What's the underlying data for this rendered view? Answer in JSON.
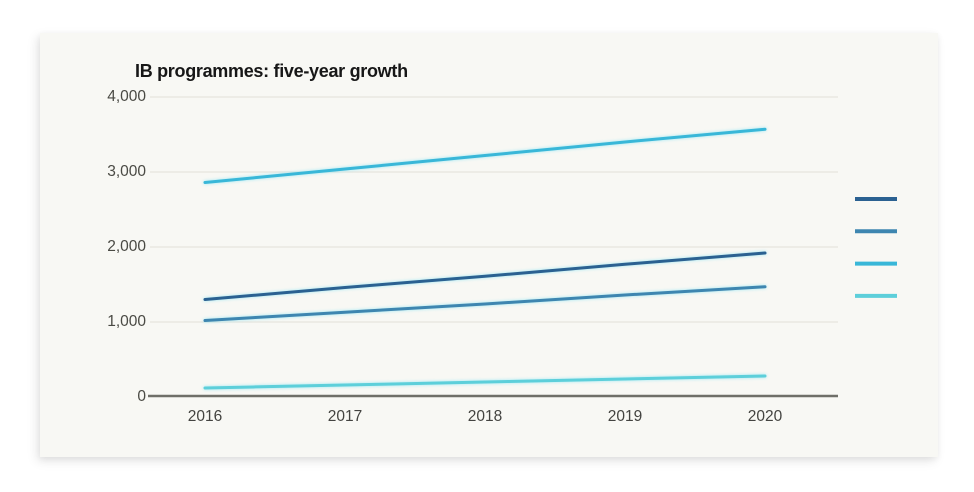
{
  "chart_data": {
    "type": "line",
    "title": "IB programmes: five-year growth",
    "x": [
      2016,
      2017,
      2018,
      2019,
      2020
    ],
    "x_tick_labels": [
      "2016",
      "2017",
      "2018",
      "2019",
      "2020"
    ],
    "y_ticks": [
      0,
      1000,
      2000,
      3000,
      4000
    ],
    "y_tick_labels": [
      "0",
      "1,000",
      "2,000",
      "3,000",
      "4,000"
    ],
    "ylim": [
      0,
      4000
    ],
    "xlabel": "",
    "ylabel": "",
    "grid": "horizontal",
    "legend": {
      "position": "right-of-plot",
      "labels_visible": false,
      "swatch_order": [
        "dark-blue",
        "medium-blue",
        "bright-cyan",
        "light-cyan"
      ]
    },
    "series": [
      {
        "name": "dark-blue-line",
        "color": "#2b6191",
        "values": [
          1300,
          1460,
          1610,
          1770,
          1920
        ]
      },
      {
        "name": "medium-blue-line",
        "color": "#3e86b0",
        "values": [
          1020,
          1130,
          1240,
          1360,
          1470
        ]
      },
      {
        "name": "bright-cyan-line",
        "color": "#39b7d8",
        "values": [
          2860,
          3040,
          3220,
          3400,
          3570
        ]
      },
      {
        "name": "light-cyan-line",
        "color": "#5dcfda",
        "values": [
          120,
          160,
          200,
          240,
          280
        ]
      }
    ],
    "colors": {
      "card_background": "#f8f8f4",
      "page_background": "#ffffff",
      "axis": "#6f6f68",
      "gridline": "#e9e8e1",
      "title_text": "#171717",
      "tick_text": "#4a4a44"
    }
  }
}
